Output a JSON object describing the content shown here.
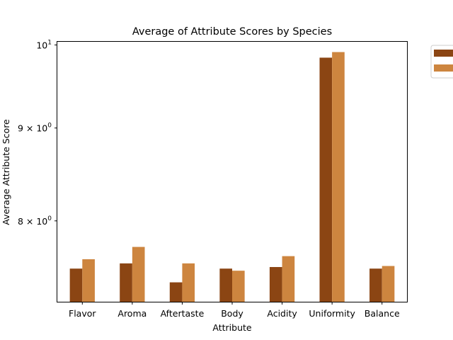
{
  "chart_data": {
    "type": "bar",
    "title": "Average of Attribute Scores by Species",
    "xlabel": "Attribute",
    "ylabel": "Average Attribute Score",
    "categories": [
      "Flavor",
      "Aroma",
      "Aftertaste",
      "Body",
      "Acidity",
      "Uniformity",
      "Balance"
    ],
    "series": [
      {
        "color": "#8B4513",
        "values": [
          7.53,
          7.58,
          7.4,
          7.53,
          7.545,
          9.84,
          7.53
        ]
      },
      {
        "color": "#CD853F",
        "values": [
          7.62,
          7.74,
          7.58,
          7.51,
          7.65,
          9.91,
          7.555
        ]
      }
    ],
    "ylim": [
      7.22,
      10.04
    ],
    "y_scale": "log",
    "y_ticks": [
      {
        "value": 10,
        "label_base": "10",
        "label_exp": "1"
      },
      {
        "value": 9,
        "label_base": "9 × 10",
        "label_exp": "0"
      },
      {
        "value": 8,
        "label_base": "8 × 10",
        "label_exp": "0"
      }
    ],
    "grid": false,
    "legend": "outside-top-right",
    "legend_entries": [
      "",
      ""
    ]
  }
}
